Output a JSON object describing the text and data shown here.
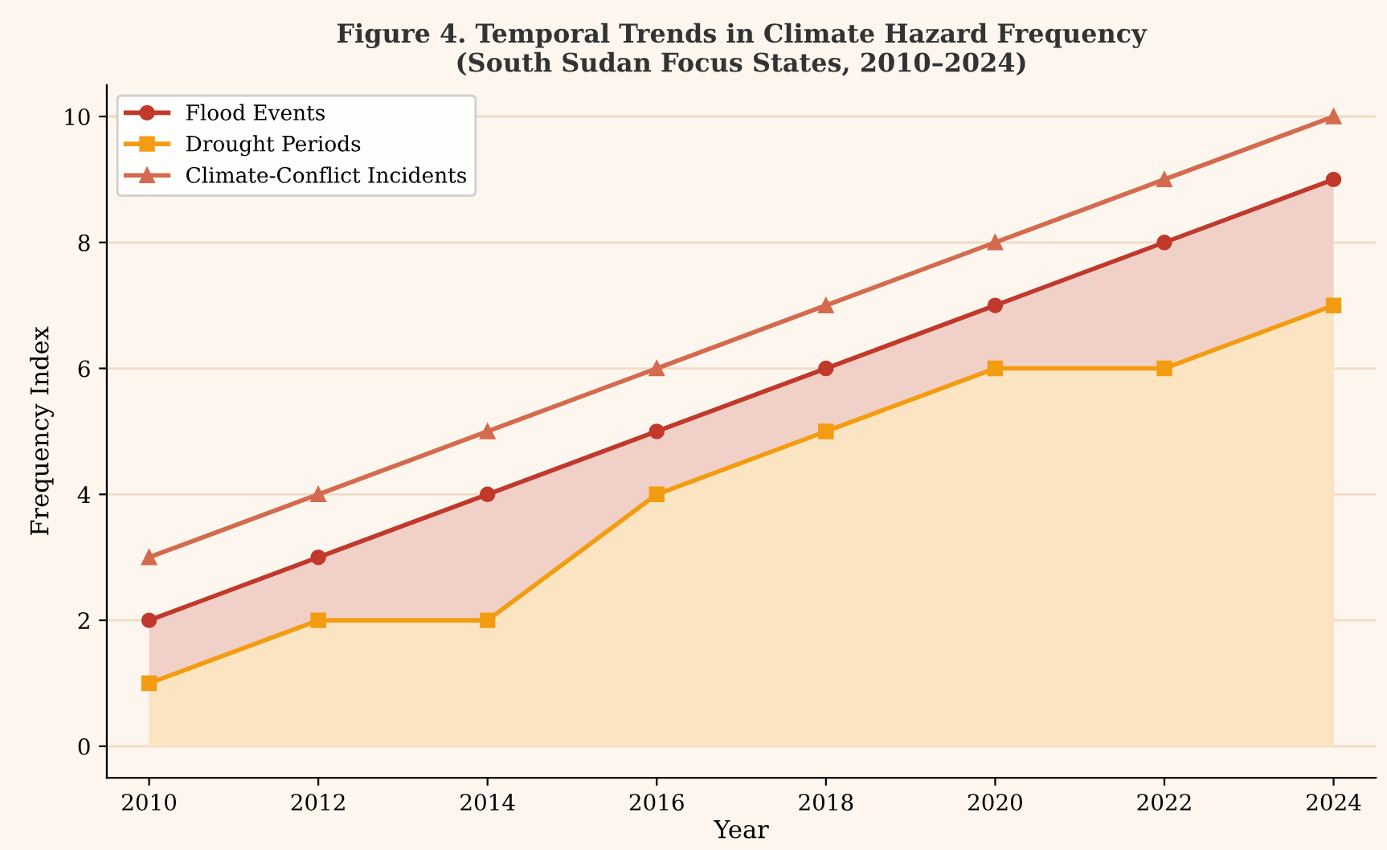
{
  "chart_data": {
    "type": "line",
    "title": "Figure 4. Temporal Trends in Climate Hazard Frequency\n(South Sudan Focus States, 2010–2024)",
    "xlabel": "Year",
    "ylabel": "Frequency Index",
    "x": [
      2010,
      2012,
      2014,
      2016,
      2018,
      2020,
      2022,
      2024
    ],
    "series": [
      {
        "name": "Flood Events",
        "type": "area",
        "color": "#c0392b",
        "marker": "circle",
        "values": [
          2,
          3,
          4,
          5,
          6,
          7,
          8,
          9
        ]
      },
      {
        "name": "Drought Periods",
        "type": "area",
        "color": "#f39c12",
        "marker": "square",
        "values": [
          1,
          2,
          2,
          4,
          5,
          6,
          6,
          7
        ]
      },
      {
        "name": "Climate-Conflict Incidents",
        "type": "line",
        "color": "#d46a4e",
        "marker": "triangle",
        "values": [
          3,
          4,
          5,
          6,
          7,
          8,
          9,
          10
        ]
      }
    ],
    "xlim": [
      2009.5,
      2024.5
    ],
    "ylim": [
      -0.5,
      10.5
    ],
    "xticks": [
      2010,
      2012,
      2014,
      2016,
      2018,
      2020,
      2022,
      2024
    ],
    "yticks": [
      0,
      2,
      4,
      6,
      8,
      10
    ],
    "grid": "y",
    "legend": "top left",
    "line_style": "solid"
  }
}
